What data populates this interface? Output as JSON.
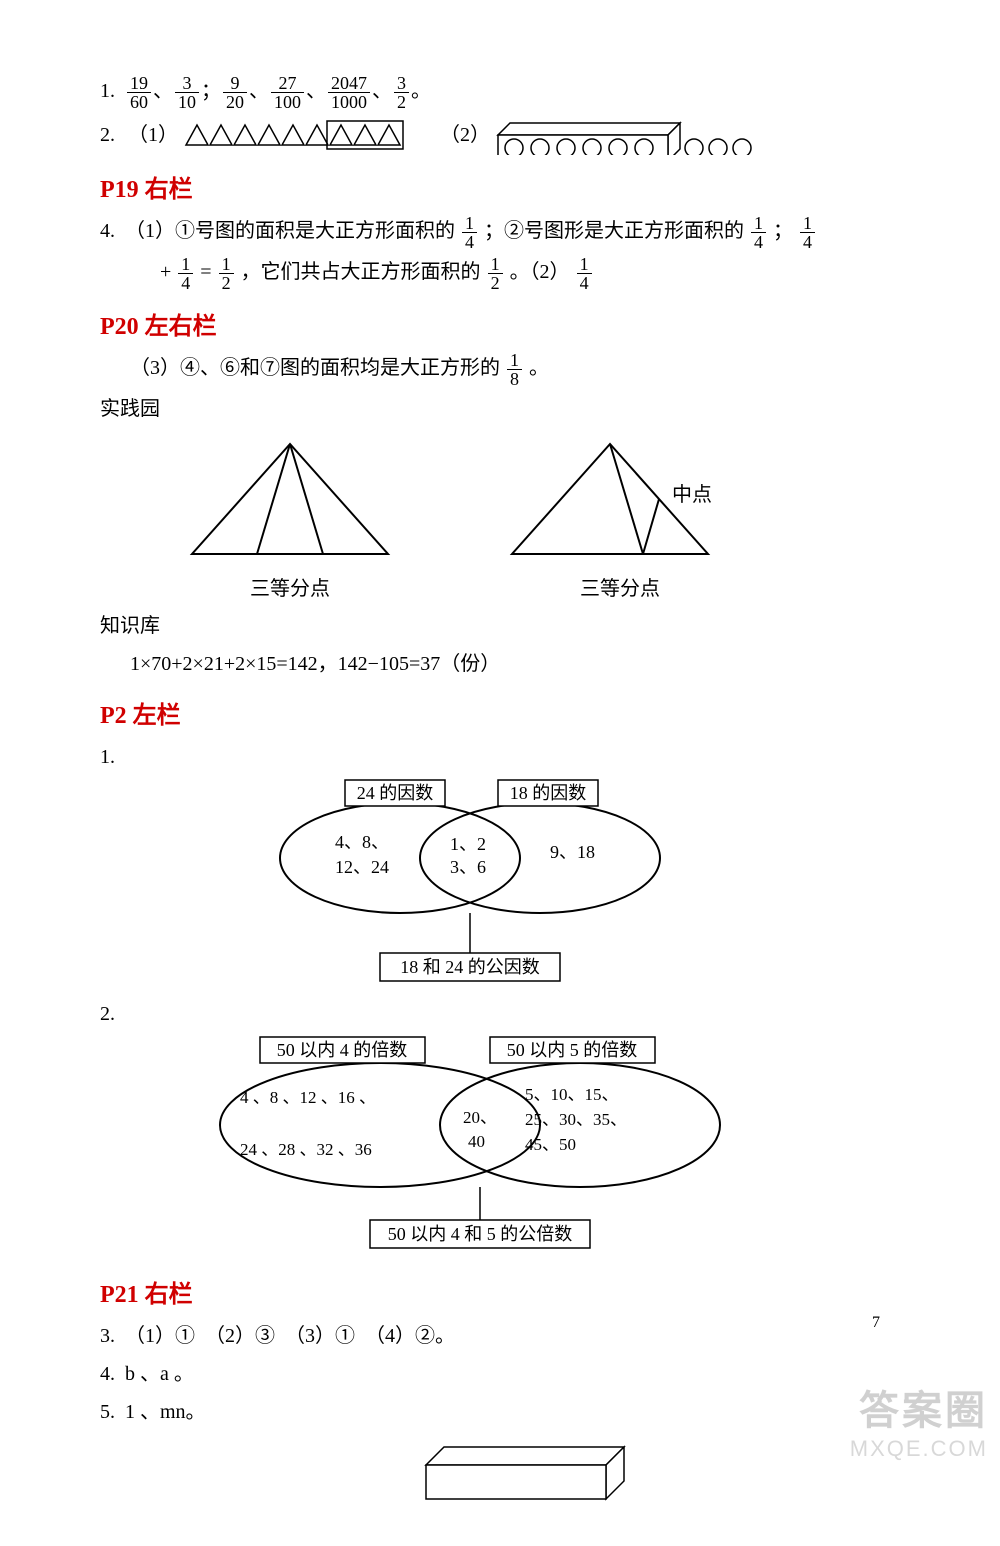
{
  "q1": {
    "prefix": "1.",
    "fractions": [
      {
        "n": "19",
        "d": "60"
      },
      {
        "n": "3",
        "d": "10"
      },
      {
        "n": "9",
        "d": "20"
      },
      {
        "n": "27",
        "d": "100"
      },
      {
        "n": "2047",
        "d": "1000"
      },
      {
        "n": "3",
        "d": "2"
      }
    ],
    "seps": [
      "、",
      "；",
      "、",
      "、",
      "、",
      ""
    ],
    "tail": "。"
  },
  "q2": {
    "prefix": "2.",
    "part1_label": "（1）",
    "part2_label": "（2）",
    "triangles_outside": 6,
    "triangles_inside": 3,
    "circles_inside": 6,
    "circles_outside": 3,
    "shape_stroke": "#000000",
    "box_fill": "#ffffff"
  },
  "h1": "P19 右栏",
  "q4": {
    "prefix": "4.",
    "line1_a": "（1）①号图的面积是大正方形面积的",
    "f1": {
      "n": "1",
      "d": "4"
    },
    "line1_b": "；②号图形是大正方形面积的",
    "f2": {
      "n": "1",
      "d": "4"
    },
    "line1_c": "；",
    "f3": {
      "n": "1",
      "d": "4"
    },
    "line2_a": "+",
    "f4": {
      "n": "1",
      "d": "4"
    },
    "line2_b": "=",
    "f5": {
      "n": "1",
      "d": "2"
    },
    "line2_c": "，它们共占大正方形面积的",
    "f6": {
      "n": "1",
      "d": "2"
    },
    "line2_d": "。（2）",
    "f7": {
      "n": "1",
      "d": "4"
    }
  },
  "h2": "P20 左右栏",
  "q_p20_line": "（3）④、⑥和⑦图的面积均是大正方形的",
  "q_p20_frac": {
    "n": "1",
    "d": "8"
  },
  "q_p20_tail": "。",
  "shijian": "实践园",
  "tri_label": "三等分点",
  "midpoint": "中点",
  "zhishiku": "知识库",
  "zhishi_calc": "1×70+2×21+2×15=142，142−105=37（份）",
  "h3": "P2 左栏",
  "venn1": {
    "num": "1.",
    "left_title": "24 的因数",
    "right_title": "18 的因数",
    "left_items": "4、8、\n12、24",
    "center_items": "1、2\n3、6",
    "right_items": "9、18",
    "bottom": "18 和 24 的公因数"
  },
  "venn2": {
    "num": "2.",
    "left_title": "50 以内 4 的倍数",
    "right_title": "50 以内 5 的倍数",
    "left_items": "4 、8 、12 、16 、\n\n24 、28 、32 、36",
    "center_items": "20、\n40",
    "right_items": "5、10、15、\n25、30、35、\n45、50",
    "bottom": "50 以内 4 和 5 的公倍数"
  },
  "h4": "P21 右栏",
  "q3": {
    "prefix": "3.",
    "text": "（1）①　（2）③　（3）①　（4）②。"
  },
  "q4b": {
    "prefix": "4.",
    "text": "b 、a 。"
  },
  "q5": {
    "prefix": "5.",
    "text": "1 、mn。"
  },
  "cuboid": {
    "w": 180,
    "h": 34,
    "depth": 18,
    "stroke": "#000000",
    "fill": "#ffffff"
  },
  "page_number": "7",
  "watermark": {
    "line1": "答案圈",
    "line2": "MXQE.COM"
  },
  "colors": {
    "heading": "#d00000",
    "text": "#000000",
    "bg": "#ffffff"
  }
}
